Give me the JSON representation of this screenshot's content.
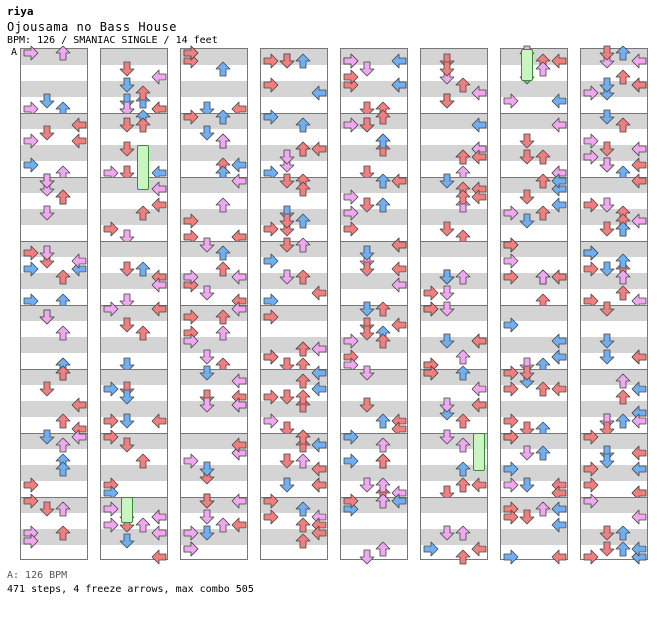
{
  "header": {
    "author": "riya",
    "title": "Ojousama no Bass House",
    "meta": "BPM: 126 / SMANIAC SINGLE / 14 feet",
    "section_label": "A"
  },
  "footer": {
    "bpm_text": "A: 126 BPM",
    "stats": "471 steps, 4 freeze arrows, max combo 505"
  },
  "chart": {
    "columns": 8,
    "measures_per_column": 8,
    "colors": {
      "quarter": "#f08080",
      "eighth": "#70b0f0",
      "sixteenth": "#f0a8f0",
      "freeze": "#c8f5c0",
      "band": "#d4d4d4",
      "border": "#777777"
    },
    "freezes": [
      {
        "col": 1,
        "lane": 2,
        "start": 1.5,
        "end": 2.2
      },
      {
        "col": 1,
        "lane": 1,
        "start": 7.0,
        "end": 7.4
      },
      {
        "col": 5,
        "lane": 3,
        "start": 6.0,
        "end": 6.6
      },
      {
        "col": 6,
        "lane": 1,
        "start": 0.0,
        "end": 0.5
      }
    ]
  }
}
